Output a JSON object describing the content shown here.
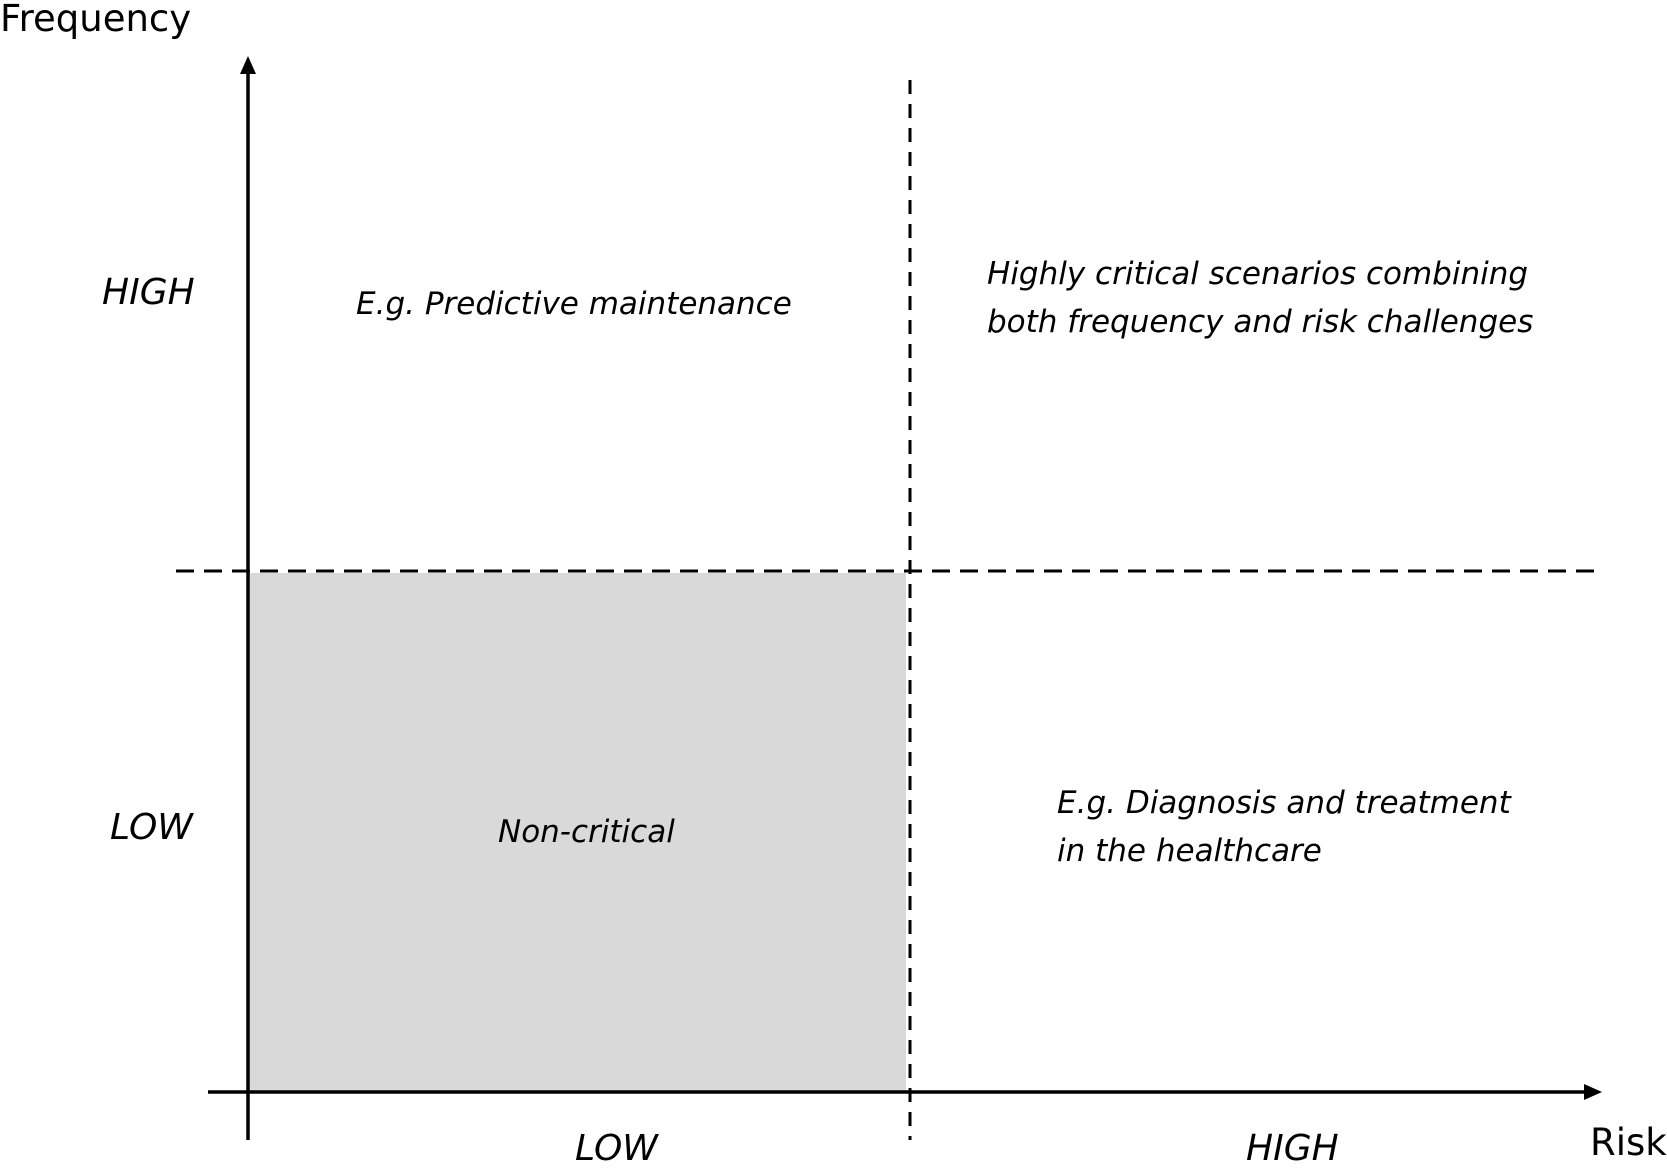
{
  "axes": {
    "y_title": "Frequency",
    "x_title": "Risk",
    "y_levels": {
      "high": "HIGH",
      "low": "LOW"
    },
    "x_levels": {
      "low": "LOW",
      "high": "HIGH"
    }
  },
  "quadrants": {
    "high_frequency_low_risk": {
      "lines": [
        "E.g. Predictive maintenance"
      ],
      "fill": "#ffffff"
    },
    "high_frequency_high_risk": {
      "lines": [
        "Highly critical scenarios combining",
        "both frequency and risk challenges"
      ],
      "fill": "#ffffff"
    },
    "low_frequency_low_risk": {
      "lines": [
        "Non-critical"
      ],
      "fill": "#d9d9d9"
    },
    "low_frequency_high_risk": {
      "lines": [
        "E.g. Diagnosis and treatment",
        "in the healthcare"
      ],
      "fill": "#ffffff"
    }
  },
  "colors": {
    "axis": "#000000",
    "divider": "#000000",
    "shaded_quadrant": "#d9d9d9"
  }
}
